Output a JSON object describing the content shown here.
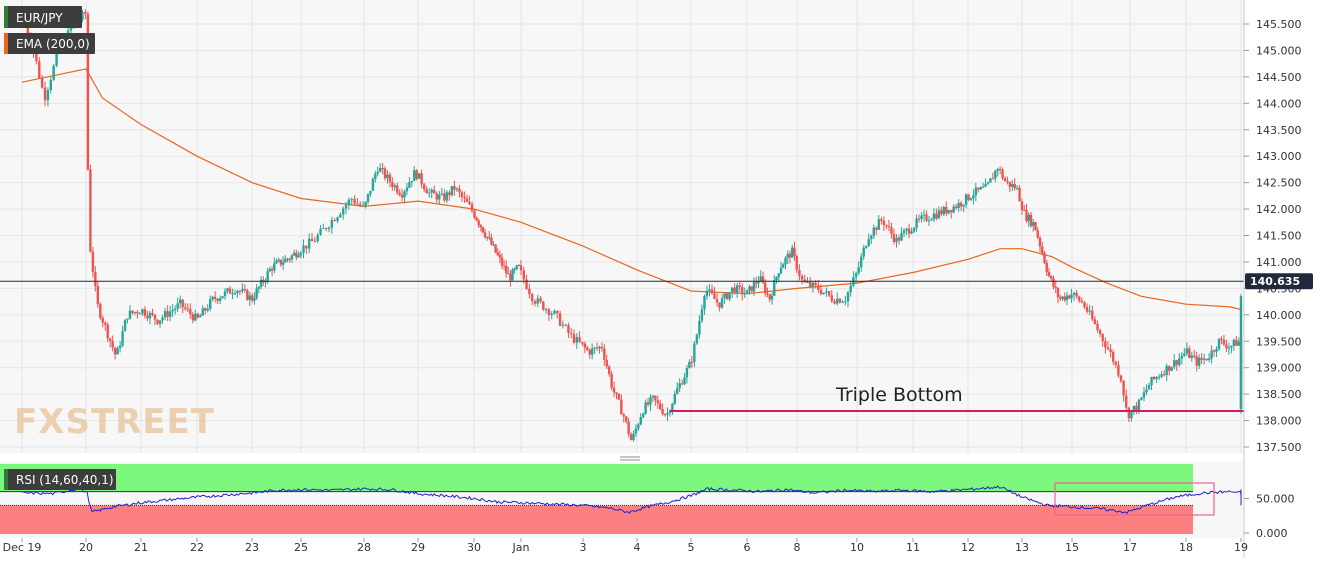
{
  "symbol": "EUR/JPY",
  "indicator_label": "EMA (200,0)",
  "rsi_label": "RSI (14,60,40,1)",
  "watermark": "FXSTREET",
  "annotation": "Triple Bottom",
  "current_price": "140.635",
  "colors": {
    "up": "#26a69a",
    "down": "#ef5350",
    "ema": "#e8681f",
    "support": "#d81b60",
    "rsi_line": "#2222cc",
    "rsi_upper_zone": "#7ef77e",
    "rsi_lower_zone": "#fc8080",
    "price_badge": "#1f2a3a",
    "annotation_box": "#f06292"
  },
  "chart_data": {
    "type": "candlestick",
    "title": "",
    "price_axis": {
      "min": 137.5,
      "max": 145.5,
      "ticks": [
        "145.500",
        "145.000",
        "144.500",
        "144.000",
        "143.500",
        "143.000",
        "142.500",
        "142.000",
        "141.500",
        "141.000",
        "140.500",
        "140.000",
        "139.500",
        "139.000",
        "138.500",
        "138.000",
        "137.500"
      ]
    },
    "x_axis": {
      "ticks": [
        "Dec 19",
        "20",
        "21",
        "22",
        "23",
        "25",
        "28",
        "29",
        "30",
        "Jan",
        "3",
        "4",
        "5",
        "6",
        "8",
        "10",
        "11",
        "12",
        "13",
        "15",
        "17",
        "18",
        "19"
      ],
      "tick_index": [
        0,
        1,
        2,
        3,
        4,
        5,
        6,
        7,
        8,
        9,
        10,
        11,
        12,
        13,
        14,
        15,
        16,
        17,
        18,
        19,
        20,
        21,
        22
      ]
    },
    "series_close_points": [
      {
        "t": 0.0,
        "p": 145.6
      },
      {
        "t": 0.2,
        "p": 144.9
      },
      {
        "t": 0.35,
        "p": 144.1
      },
      {
        "t": 0.55,
        "p": 144.9
      },
      {
        "t": 0.8,
        "p": 145.5
      },
      {
        "t": 1.0,
        "p": 145.7
      },
      {
        "t": 1.05,
        "p": 141.5
      },
      {
        "t": 1.2,
        "p": 140.2
      },
      {
        "t": 1.55,
        "p": 139.2
      },
      {
        "t": 1.75,
        "p": 140.0
      },
      {
        "t": 2.0,
        "p": 140.1
      },
      {
        "t": 2.3,
        "p": 139.9
      },
      {
        "t": 2.7,
        "p": 140.2
      },
      {
        "t": 3.0,
        "p": 139.9
      },
      {
        "t": 3.3,
        "p": 140.3
      },
      {
        "t": 3.7,
        "p": 140.5
      },
      {
        "t": 4.0,
        "p": 140.3
      },
      {
        "t": 4.4,
        "p": 140.9
      },
      {
        "t": 4.8,
        "p": 141.1
      },
      {
        "t": 5.2,
        "p": 141.4
      },
      {
        "t": 5.5,
        "p": 141.8
      },
      {
        "t": 5.8,
        "p": 142.2
      },
      {
        "t": 6.0,
        "p": 142.0
      },
      {
        "t": 6.25,
        "p": 142.8
      },
      {
        "t": 6.5,
        "p": 142.5
      },
      {
        "t": 6.7,
        "p": 142.3
      },
      {
        "t": 6.95,
        "p": 142.7
      },
      {
        "t": 7.2,
        "p": 142.3
      },
      {
        "t": 7.45,
        "p": 142.2
      },
      {
        "t": 7.65,
        "p": 142.4
      },
      {
        "t": 7.95,
        "p": 142.0
      },
      {
        "t": 8.2,
        "p": 141.6
      },
      {
        "t": 8.45,
        "p": 141.2
      },
      {
        "t": 8.75,
        "p": 140.7
      },
      {
        "t": 8.95,
        "p": 140.9
      },
      {
        "t": 9.2,
        "p": 140.3
      },
      {
        "t": 9.55,
        "p": 140.0
      },
      {
        "t": 9.8,
        "p": 139.6
      },
      {
        "t": 10.1,
        "p": 139.3
      },
      {
        "t": 10.35,
        "p": 139.4
      },
      {
        "t": 10.55,
        "p": 138.6
      },
      {
        "t": 10.75,
        "p": 138.1
      },
      {
        "t": 10.9,
        "p": 137.6
      },
      {
        "t": 11.1,
        "p": 138.2
      },
      {
        "t": 11.3,
        "p": 138.4
      },
      {
        "t": 11.55,
        "p": 138.1
      },
      {
        "t": 11.75,
        "p": 138.6
      },
      {
        "t": 12.0,
        "p": 139.1
      },
      {
        "t": 12.1,
        "p": 139.6
      },
      {
        "t": 12.25,
        "p": 140.5
      },
      {
        "t": 12.5,
        "p": 140.2
      },
      {
        "t": 12.75,
        "p": 140.5
      },
      {
        "t": 13.0,
        "p": 140.4
      },
      {
        "t": 13.25,
        "p": 140.7
      },
      {
        "t": 13.45,
        "p": 140.3
      },
      {
        "t": 13.65,
        "p": 140.9
      },
      {
        "t": 13.9,
        "p": 141.2
      },
      {
        "t": 14.1,
        "p": 140.6
      },
      {
        "t": 14.35,
        "p": 140.5
      },
      {
        "t": 14.6,
        "p": 140.3
      },
      {
        "t": 14.8,
        "p": 140.3
      },
      {
        "t": 15.0,
        "p": 140.8
      },
      {
        "t": 15.2,
        "p": 141.5
      },
      {
        "t": 15.45,
        "p": 141.8
      },
      {
        "t": 15.7,
        "p": 141.4
      },
      {
        "t": 15.9,
        "p": 141.6
      },
      {
        "t": 16.15,
        "p": 141.8
      },
      {
        "t": 16.4,
        "p": 141.9
      },
      {
        "t": 16.65,
        "p": 142.0
      },
      {
        "t": 16.85,
        "p": 142.1
      },
      {
        "t": 17.1,
        "p": 142.3
      },
      {
        "t": 17.35,
        "p": 142.4
      },
      {
        "t": 17.55,
        "p": 142.8
      },
      {
        "t": 17.7,
        "p": 142.5
      },
      {
        "t": 17.9,
        "p": 142.4
      },
      {
        "t": 18.05,
        "p": 141.9
      },
      {
        "t": 18.25,
        "p": 141.7
      },
      {
        "t": 18.4,
        "p": 141.2
      },
      {
        "t": 18.55,
        "p": 140.7
      },
      {
        "t": 18.75,
        "p": 140.3
      },
      {
        "t": 19.0,
        "p": 140.4
      },
      {
        "t": 19.2,
        "p": 140.2
      },
      {
        "t": 19.45,
        "p": 139.7
      },
      {
        "t": 19.65,
        "p": 139.3
      },
      {
        "t": 19.85,
        "p": 138.8
      },
      {
        "t": 19.95,
        "p": 138.1
      },
      {
        "t": 20.15,
        "p": 138.3
      },
      {
        "t": 20.35,
        "p": 138.7
      },
      {
        "t": 20.55,
        "p": 138.9
      },
      {
        "t": 20.8,
        "p": 139.1
      },
      {
        "t": 21.0,
        "p": 139.3
      },
      {
        "t": 21.2,
        "p": 139.1
      },
      {
        "t": 21.4,
        "p": 139.2
      },
      {
        "t": 21.6,
        "p": 139.5
      },
      {
        "t": 21.8,
        "p": 139.4
      },
      {
        "t": 21.95,
        "p": 139.5
      },
      {
        "t": 22.05,
        "p": 139.4
      },
      {
        "t": 22.15,
        "p": 138.2
      },
      {
        "t": 22.3,
        "p": 138.3
      },
      {
        "t": 22.4,
        "p": 138.6
      },
      {
        "t": 22.55,
        "p": 139.0
      },
      {
        "t": 22.65,
        "p": 140.0
      },
      {
        "t": 22.72,
        "p": 140.635
      }
    ],
    "ema_points": [
      {
        "t": 0.0,
        "p": 144.4
      },
      {
        "t": 0.6,
        "p": 144.55
      },
      {
        "t": 1.0,
        "p": 144.65
      },
      {
        "t": 1.3,
        "p": 144.1
      },
      {
        "t": 2.0,
        "p": 143.6
      },
      {
        "t": 3.0,
        "p": 143.0
      },
      {
        "t": 4.0,
        "p": 142.5
      },
      {
        "t": 5.0,
        "p": 142.2
      },
      {
        "t": 6.0,
        "p": 142.05
      },
      {
        "t": 7.0,
        "p": 142.15
      },
      {
        "t": 8.0,
        "p": 142.0
      },
      {
        "t": 9.0,
        "p": 141.75
      },
      {
        "t": 10.0,
        "p": 141.3
      },
      {
        "t": 11.0,
        "p": 140.85
      },
      {
        "t": 12.0,
        "p": 140.45
      },
      {
        "t": 13.0,
        "p": 140.4
      },
      {
        "t": 14.0,
        "p": 140.5
      },
      {
        "t": 15.0,
        "p": 140.6
      },
      {
        "t": 16.0,
        "p": 140.8
      },
      {
        "t": 17.0,
        "p": 141.05
      },
      {
        "t": 17.6,
        "p": 141.25
      },
      {
        "t": 18.0,
        "p": 141.25
      },
      {
        "t": 18.6,
        "p": 141.1
      },
      {
        "t": 19.0,
        "p": 140.9
      },
      {
        "t": 19.6,
        "p": 140.6
      },
      {
        "t": 20.2,
        "p": 140.35
      },
      {
        "t": 21.0,
        "p": 140.2
      },
      {
        "t": 21.8,
        "p": 140.15
      },
      {
        "t": 22.4,
        "p": 140.1
      },
      {
        "t": 22.72,
        "p": 140.0
      }
    ],
    "support_level": 138.18,
    "support_from_t": 11.6,
    "current_price": 140.635,
    "rsi": {
      "axis_ticks": [
        "50.000",
        "0.000"
      ],
      "min": 0,
      "max": 100,
      "upper": 60,
      "lower": 40,
      "points": [
        {
          "t": 0.0,
          "p": 58
        },
        {
          "t": 0.5,
          "p": 57
        },
        {
          "t": 0.9,
          "p": 65
        },
        {
          "t": 1.02,
          "p": 58
        },
        {
          "t": 1.1,
          "p": 30
        },
        {
          "t": 1.5,
          "p": 38
        },
        {
          "t": 2.0,
          "p": 44
        },
        {
          "t": 2.5,
          "p": 48
        },
        {
          "t": 3.0,
          "p": 52
        },
        {
          "t": 3.5,
          "p": 55
        },
        {
          "t": 4.0,
          "p": 58
        },
        {
          "t": 4.5,
          "p": 62
        },
        {
          "t": 5.0,
          "p": 63
        },
        {
          "t": 5.5,
          "p": 62
        },
        {
          "t": 6.0,
          "p": 64
        },
        {
          "t": 6.5,
          "p": 63
        },
        {
          "t": 7.0,
          "p": 57
        },
        {
          "t": 7.5,
          "p": 54
        },
        {
          "t": 8.0,
          "p": 50
        },
        {
          "t": 8.5,
          "p": 45
        },
        {
          "t": 9.0,
          "p": 44
        },
        {
          "t": 9.5,
          "p": 42
        },
        {
          "t": 10.0,
          "p": 40
        },
        {
          "t": 10.5,
          "p": 36
        },
        {
          "t": 10.85,
          "p": 30
        },
        {
          "t": 11.2,
          "p": 38
        },
        {
          "t": 11.6,
          "p": 45
        },
        {
          "t": 12.0,
          "p": 54
        },
        {
          "t": 12.3,
          "p": 64
        },
        {
          "t": 12.8,
          "p": 62
        },
        {
          "t": 13.3,
          "p": 60
        },
        {
          "t": 13.8,
          "p": 63
        },
        {
          "t": 14.3,
          "p": 58
        },
        {
          "t": 14.8,
          "p": 62
        },
        {
          "t": 15.3,
          "p": 60
        },
        {
          "t": 15.8,
          "p": 62
        },
        {
          "t": 16.3,
          "p": 60
        },
        {
          "t": 16.8,
          "p": 62
        },
        {
          "t": 17.3,
          "p": 65
        },
        {
          "t": 17.6,
          "p": 67
        },
        {
          "t": 18.0,
          "p": 52
        },
        {
          "t": 18.5,
          "p": 40
        },
        {
          "t": 19.0,
          "p": 38
        },
        {
          "t": 19.5,
          "p": 35
        },
        {
          "t": 19.95,
          "p": 30
        },
        {
          "t": 20.3,
          "p": 40
        },
        {
          "t": 20.8,
          "p": 52
        },
        {
          "t": 21.3,
          "p": 58
        },
        {
          "t": 21.8,
          "p": 60
        },
        {
          "t": 22.0,
          "p": 58
        },
        {
          "t": 22.15,
          "p": 40
        },
        {
          "t": 22.4,
          "p": 44
        },
        {
          "t": 22.6,
          "p": 58
        },
        {
          "t": 22.72,
          "p": 66
        }
      ]
    }
  }
}
